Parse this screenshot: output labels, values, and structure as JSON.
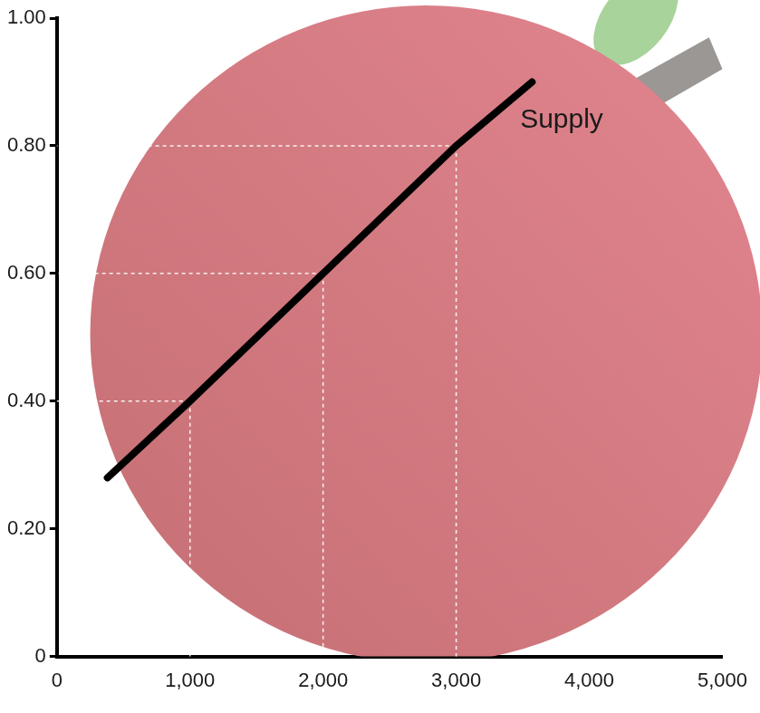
{
  "chart_data": {
    "type": "line",
    "series": [
      {
        "name": "Supply",
        "color": "#000000",
        "x": [
          380,
          1000,
          2000,
          3000,
          3570
        ],
        "values": [
          0.28,
          0.4,
          0.6,
          0.8,
          0.9
        ]
      }
    ],
    "guides": [
      {
        "x": 1000,
        "y": 0.4
      },
      {
        "x": 2000,
        "y": 0.6
      },
      {
        "x": 3000,
        "y": 0.8
      }
    ],
    "annotations": [
      {
        "text": "Supply",
        "x": 3480,
        "y": 0.84
      }
    ],
    "xlim": [
      0,
      5000
    ],
    "xticks": [
      0,
      {
        "value": 1000,
        "label": "1,000"
      },
      {
        "value": 2000,
        "label": "2,000"
      },
      {
        "value": 3000,
        "label": "3,000"
      },
      {
        "value": 4000,
        "label": "4,000"
      },
      {
        "value": 5000,
        "label": "5,000"
      }
    ],
    "ylim": [
      0,
      1.0
    ],
    "yticks": [
      0,
      {
        "value": 0.2,
        "label": "0.20"
      },
      {
        "value": 0.4,
        "label": "0.40"
      },
      {
        "value": 0.6,
        "label": "0.60"
      },
      {
        "value": 0.8,
        "label": "0.80"
      },
      {
        "value": 1.0,
        "label": "1.00"
      }
    ],
    "grid": false
  }
}
